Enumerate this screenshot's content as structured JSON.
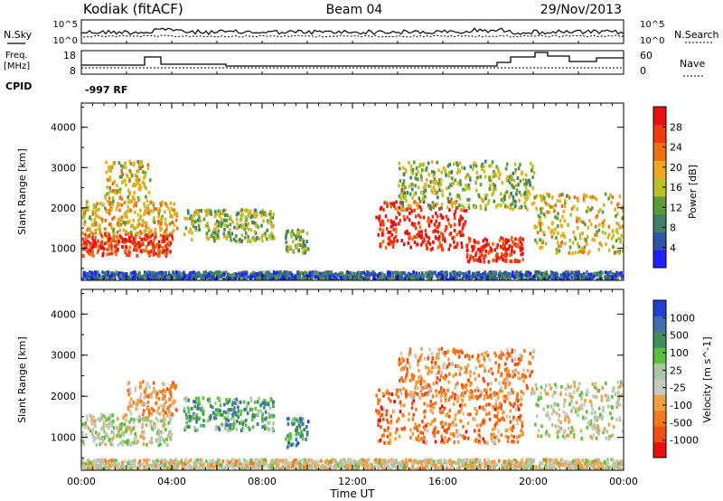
{
  "header": {
    "title": "Kodiak (fitACF)",
    "beam": "Beam 04",
    "date": "29/Nov/2013"
  },
  "side_labels": {
    "nsky": "N.Sky",
    "nsearch": "N.Search",
    "freq_line1": "Freq.",
    "freq_line2": "[MHz]",
    "nave": "Nave",
    "cpid": "CPID",
    "cpid_value": "-997 RF"
  },
  "noise_panel": {
    "left_ticks": [
      "10^5",
      "10^0"
    ],
    "right_ticks": [
      "10^5",
      "10^0"
    ]
  },
  "freq_panel": {
    "left_ticks": [
      "18",
      "8"
    ],
    "right_ticks": [
      "60",
      "0"
    ]
  },
  "colors": {
    "power": [
      "#2020ff",
      "#2f55a8",
      "#3f7f6a",
      "#5a9a3a",
      "#b8c02a",
      "#f0a820",
      "#f07010",
      "#f03a10",
      "#e81010"
    ],
    "velocity": [
      "#e81010",
      "#f05018",
      "#f07a18",
      "#f0a040",
      "#c8c8c0",
      "#a8c8a0",
      "#5ac040",
      "#3f8f5a",
      "#3f6fb0",
      "#2040d0"
    ]
  },
  "chart_data": [
    {
      "type": "heatmap",
      "ylabel": "Slant Range [km]",
      "xlabel": "",
      "yticks": [
        "1000",
        "2000",
        "3000",
        "4000"
      ],
      "ylim": [
        200,
        4600
      ],
      "xlim": [
        0,
        24
      ],
      "colorbar": {
        "label": "Power [dB]",
        "ticks": [
          "4",
          "8",
          "12",
          "16",
          "20",
          "24",
          "28"
        ],
        "range": [
          0,
          32
        ]
      },
      "regions": [
        {
          "t": [
            0.0,
            4.0
          ],
          "r": [
            850,
            1400
          ],
          "level": 0.85
        },
        {
          "t": [
            0.0,
            4.2
          ],
          "r": [
            1400,
            2200
          ],
          "level": 0.6
        },
        {
          "t": [
            1.0,
            3.0
          ],
          "r": [
            2200,
            3200
          ],
          "level": 0.55
        },
        {
          "t": [
            4.5,
            8.5
          ],
          "r": [
            1200,
            2000
          ],
          "level": 0.45
        },
        {
          "t": [
            9.0,
            10.0
          ],
          "r": [
            900,
            1500
          ],
          "level": 0.4
        },
        {
          "t": [
            13.0,
            17.0
          ],
          "r": [
            1000,
            2200
          ],
          "level": 0.9
        },
        {
          "t": [
            17.0,
            19.5
          ],
          "r": [
            700,
            1300
          ],
          "level": 0.9
        },
        {
          "t": [
            14.0,
            20.0
          ],
          "r": [
            2000,
            3200
          ],
          "level": 0.45
        },
        {
          "t": [
            20.0,
            24.0
          ],
          "r": [
            900,
            2400
          ],
          "level": 0.55
        },
        {
          "t": [
            0.0,
            24.0
          ],
          "r": [
            250,
            450
          ],
          "level": 0.2
        }
      ]
    },
    {
      "type": "heatmap",
      "ylabel": "Slant Range [km]",
      "xlabel": "Time UT",
      "xticks": [
        "00:00",
        "04:00",
        "08:00",
        "12:00",
        "16:00",
        "20:00",
        "00:00"
      ],
      "yticks": [
        "1000",
        "2000",
        "3000",
        "4000"
      ],
      "ylim": [
        200,
        4600
      ],
      "xlim": [
        0,
        24
      ],
      "colorbar": {
        "label": "Velocity [m s^-1]",
        "ticks": [
          "1000",
          "500",
          "100",
          "25",
          "-25",
          "-100",
          "-500",
          "-1000"
        ],
        "range": [
          -1000,
          1000
        ]
      },
      "regions": [
        {
          "t": [
            0.0,
            4.0
          ],
          "r": [
            850,
            1600
          ],
          "level": 0.5
        },
        {
          "t": [
            2.0,
            4.2
          ],
          "r": [
            1600,
            2400
          ],
          "level": 0.35
        },
        {
          "t": [
            4.5,
            8.5
          ],
          "r": [
            1200,
            2000
          ],
          "level": 0.7
        },
        {
          "t": [
            9.0,
            10.0
          ],
          "r": [
            800,
            1500
          ],
          "level": 0.75
        },
        {
          "t": [
            13.0,
            19.5
          ],
          "r": [
            900,
            2200
          ],
          "level": 0.25
        },
        {
          "t": [
            14.0,
            20.0
          ],
          "r": [
            2000,
            3200
          ],
          "level": 0.3
        },
        {
          "t": [
            20.0,
            24.0
          ],
          "r": [
            1000,
            2400
          ],
          "level": 0.5
        },
        {
          "t": [
            0.0,
            24.0
          ],
          "r": [
            250,
            500
          ],
          "level": 0.45
        }
      ]
    }
  ]
}
